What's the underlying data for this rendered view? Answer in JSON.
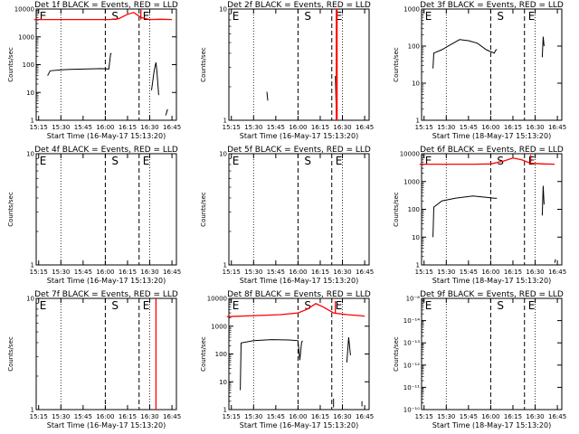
{
  "chart_data": [
    {
      "type": "line",
      "title": "Det 1f BLACK = Events, RED = LLD",
      "xlabel": "Start Time (16-May-17 15:13:20)",
      "ylabel": "Counts/sec",
      "yscale": "log",
      "ylim": [
        1,
        10000
      ],
      "yticks": [
        "1",
        "10",
        "100",
        "1000",
        "10000"
      ],
      "x_ticks": [
        "15:15",
        "15:30",
        "15:45",
        "16:00",
        "16:15",
        "16:30",
        "16:45"
      ],
      "markers": [
        "E",
        "S",
        "E"
      ],
      "series": [
        {
          "color": "#000000",
          "segments": [
            [
              [
                15.35,
                40
              ],
              [
                15.38,
                60
              ],
              [
                15.5,
                65
              ],
              [
                15.6,
                68
              ],
              [
                15.8,
                70
              ],
              [
                15.95,
                72
              ],
              [
                16.04,
                70
              ],
              [
                16.06,
                250
              ],
              [
                16.07,
                250
              ]
            ],
            [
              [
                16.52,
                12
              ],
              [
                16.55,
                60
              ],
              [
                16.57,
                120
              ],
              [
                16.58,
                60
              ],
              [
                16.6,
                8
              ]
            ],
            [
              [
                16.68,
                1.5
              ],
              [
                16.7,
                2.5
              ]
            ]
          ]
        },
        {
          "color": "#ff0000",
          "segments": [
            [
              [
                15.2,
                4200
              ],
              [
                15.3,
                4200
              ],
              [
                15.6,
                4200
              ],
              [
                15.9,
                4200
              ],
              [
                16.05,
                4200
              ],
              [
                16.15,
                4500
              ],
              [
                16.25,
                6500
              ],
              [
                16.32,
                7500
              ],
              [
                16.4,
                5000
              ],
              [
                16.5,
                4200
              ],
              [
                16.62,
                4300
              ],
              [
                16.75,
                4200
              ]
            ],
            [
              [
                16.4,
                4200
              ],
              [
                16.4,
                9500
              ]
            ]
          ]
        }
      ]
    },
    {
      "type": "line",
      "title": "Det 2f BLACK = Events, RED = LLD",
      "xlabel": "Start Time (16-May-17 15:13:20)",
      "ylabel": "Counts/sec",
      "yscale": "log",
      "ylim": [
        1,
        10
      ],
      "yticks": [
        "1",
        "10"
      ],
      "x_ticks": [
        "15:15",
        "15:30",
        "15:45",
        "16:00",
        "16:15",
        "16:30",
        "16:45"
      ],
      "markers": [
        "E",
        "S",
        "E"
      ],
      "series": [
        {
          "color": "#000000",
          "segments": [
            [
              [
                15.65,
                1.8
              ],
              [
                15.66,
                1.5
              ]
            ],
            [
              [
                16.42,
                2.5
              ],
              [
                16.43,
                1.2
              ]
            ]
          ]
        },
        {
          "color": "#ff0000",
          "segments": [
            [
              [
                16.43,
                1
              ],
              [
                16.43,
                10
              ]
            ],
            [
              [
                16.44,
                1
              ],
              [
                16.44,
                10
              ]
            ]
          ]
        }
      ]
    },
    {
      "type": "line",
      "title": "Det 3f BLACK = Events, RED = LLD",
      "xlabel": "Start Time (18-May-17 15:13:20)",
      "ylabel": "Counts/sec",
      "yscale": "log",
      "ylim": [
        1,
        1000
      ],
      "yticks": [
        "1",
        "10",
        "100",
        "1000"
      ],
      "x_ticks": [
        "15:15",
        "15:30",
        "15:45",
        "16:00",
        "16:15",
        "16:30",
        "16:45"
      ],
      "markers": [
        "E",
        "S",
        "E"
      ],
      "series": [
        {
          "color": "#000000",
          "segments": [
            [
              [
                15.35,
                25
              ],
              [
                15.36,
                65
              ],
              [
                15.45,
                80
              ],
              [
                15.55,
                110
              ],
              [
                15.65,
                150
              ],
              [
                15.75,
                140
              ],
              [
                15.85,
                120
              ],
              [
                15.95,
                80
              ],
              [
                16.04,
                65
              ],
              [
                16.06,
                80
              ],
              [
                16.07,
                80
              ]
            ],
            [
              [
                16.58,
                50
              ],
              [
                16.59,
                180
              ],
              [
                16.6,
                100
              ]
            ]
          ]
        },
        {
          "color": "#ff0000",
          "segments": []
        }
      ]
    },
    {
      "type": "line",
      "title": "Det 4f BLACK = Events, RED = LLD",
      "xlabel": "Start Time (16-May-17 15:13:20)",
      "ylabel": "Counts/sec",
      "yscale": "log",
      "ylim": [
        1,
        10
      ],
      "yticks": [
        "1",
        "10"
      ],
      "x_ticks": [
        "15:15",
        "15:30",
        "15:45",
        "16:00",
        "16:15",
        "16:30",
        "16:45"
      ],
      "markers": [
        "E",
        "S",
        "E"
      ],
      "series": [
        {
          "color": "#000000",
          "segments": []
        },
        {
          "color": "#ff0000",
          "segments": []
        }
      ]
    },
    {
      "type": "line",
      "title": "Det 5f BLACK = Events, RED = LLD",
      "xlabel": "Start Time (16-May-17 15:13:20)",
      "ylabel": "Counts/sec",
      "yscale": "log",
      "ylim": [
        1,
        10
      ],
      "yticks": [
        "1",
        "10"
      ],
      "x_ticks": [
        "15:15",
        "15:30",
        "15:45",
        "16:00",
        "16:15",
        "16:30",
        "16:45"
      ],
      "markers": [
        "E",
        "S",
        "E"
      ],
      "series": [
        {
          "color": "#000000",
          "segments": []
        },
        {
          "color": "#ff0000",
          "segments": []
        }
      ]
    },
    {
      "type": "line",
      "title": "Det 6f BLACK = Events, RED = LLD",
      "xlabel": "Start Time (18-May-17 15:13:20)",
      "ylabel": "Counts/sec",
      "yscale": "log",
      "ylim": [
        1,
        10000
      ],
      "yticks": [
        "1",
        "10",
        "100",
        "1000",
        "10000"
      ],
      "x_ticks": [
        "15:15",
        "15:30",
        "15:45",
        "16:00",
        "16:15",
        "16:30",
        "16:45"
      ],
      "markers": [
        "E",
        "S",
        "E"
      ],
      "series": [
        {
          "color": "#000000",
          "segments": [
            [
              [
                15.35,
                10
              ],
              [
                15.36,
                120
              ],
              [
                15.45,
                200
              ],
              [
                15.6,
                250
              ],
              [
                15.8,
                300
              ],
              [
                15.95,
                270
              ],
              [
                16.04,
                250
              ],
              [
                16.06,
                250
              ],
              [
                16.07,
                250
              ]
            ],
            [
              [
                16.58,
                60
              ],
              [
                16.59,
                700
              ],
              [
                16.6,
                150
              ]
            ],
            [
              [
                16.72,
                1.2
              ],
              [
                16.73,
                1.6
              ]
            ]
          ]
        },
        {
          "color": "#ff0000",
          "segments": [
            [
              [
                15.2,
                4200
              ],
              [
                15.5,
                4200
              ],
              [
                15.8,
                4200
              ],
              [
                16.0,
                4300
              ],
              [
                16.15,
                5500
              ],
              [
                16.25,
                7000
              ],
              [
                16.35,
                6000
              ],
              [
                16.45,
                4500
              ],
              [
                16.6,
                4300
              ],
              [
                16.72,
                4200
              ]
            ],
            [
              [
                16.45,
                4500
              ],
              [
                16.45,
                9000
              ]
            ]
          ]
        }
      ]
    },
    {
      "type": "line",
      "title": "Det 7f BLACK = Events, RED = LLD",
      "xlabel": "Start Time (16-May-17 15:13:20)",
      "ylabel": "Counts/sec",
      "yscale": "log",
      "ylim": [
        1,
        10
      ],
      "yticks": [
        "1",
        "10"
      ],
      "x_ticks": [
        "15:15",
        "15:30",
        "15:45",
        "16:00",
        "16:15",
        "16:30",
        "16:45"
      ],
      "markers": [
        "E",
        "S",
        "E"
      ],
      "series": [
        {
          "color": "#000000",
          "segments": []
        },
        {
          "color": "#ff0000",
          "segments": [
            [
              [
                16.57,
                1
              ],
              [
                16.57,
                10
              ]
            ]
          ]
        }
      ]
    },
    {
      "type": "line",
      "title": "Det 8f BLACK = Events, RED = LLD",
      "xlabel": "Start Time (16-May-17 15:13:20)",
      "ylabel": "Counts/sec",
      "yscale": "log",
      "ylim": [
        1,
        10000
      ],
      "yticks": [
        "1",
        "10",
        "100",
        "1000",
        "10000"
      ],
      "x_ticks": [
        "15:15",
        "15:30",
        "15:45",
        "16:00",
        "16:15",
        "16:30",
        "16:45"
      ],
      "markers": [
        "E",
        "S",
        "E"
      ],
      "series": [
        {
          "color": "#000000",
          "segments": [
            [
              [
                15.35,
                5
              ],
              [
                15.36,
                250
              ],
              [
                15.5,
                300
              ],
              [
                15.7,
                330
              ],
              [
                15.9,
                320
              ],
              [
                16.0,
                300
              ],
              [
                16.02,
                60
              ],
              [
                16.04,
                250
              ],
              [
                16.05,
                300
              ]
            ],
            [
              [
                16.55,
                50
              ],
              [
                16.57,
                400
              ],
              [
                16.59,
                90
              ]
            ],
            [
              [
                16.4,
                1.2
              ],
              [
                16.4,
                2.5
              ]
            ],
            [
              [
                16.72,
                1.3
              ],
              [
                16.72,
                2
              ]
            ]
          ]
        },
        {
          "color": "#ff0000",
          "segments": [
            [
              [
                15.2,
                2200
              ],
              [
                15.5,
                2400
              ],
              [
                15.8,
                2600
              ],
              [
                16.0,
                3000
              ],
              [
                16.1,
                4000
              ],
              [
                16.2,
                6500
              ],
              [
                16.28,
                5000
              ],
              [
                16.4,
                3000
              ],
              [
                16.55,
                2600
              ],
              [
                16.7,
                2400
              ],
              [
                16.75,
                2300
              ]
            ],
            [
              [
                16.42,
                3000
              ],
              [
                16.42,
                8000
              ]
            ]
          ]
        }
      ]
    },
    {
      "type": "line",
      "title": "Det 9f BLACK = Events, RED = LLD",
      "xlabel": "Start Time (18-May-17 15:13:20)",
      "ylabel": "Counts/sec",
      "yscale": "log",
      "ylim": [
        1e-10,
        1e-08
      ],
      "yticks": [
        "10⁻¹⁰",
        "10⁻¹¹",
        "10⁻¹²",
        "10⁻¹³",
        "10⁻¹⁴",
        "10⁻⁸"
      ],
      "x_ticks": [
        "15:15",
        "15:30",
        "15:45",
        "16:00",
        "16:15",
        "16:30",
        "16:45"
      ],
      "markers": [
        "E",
        "S",
        "E"
      ],
      "series": [
        {
          "color": "#000000",
          "segments": []
        },
        {
          "color": "#ff0000",
          "segments": []
        }
      ]
    }
  ]
}
